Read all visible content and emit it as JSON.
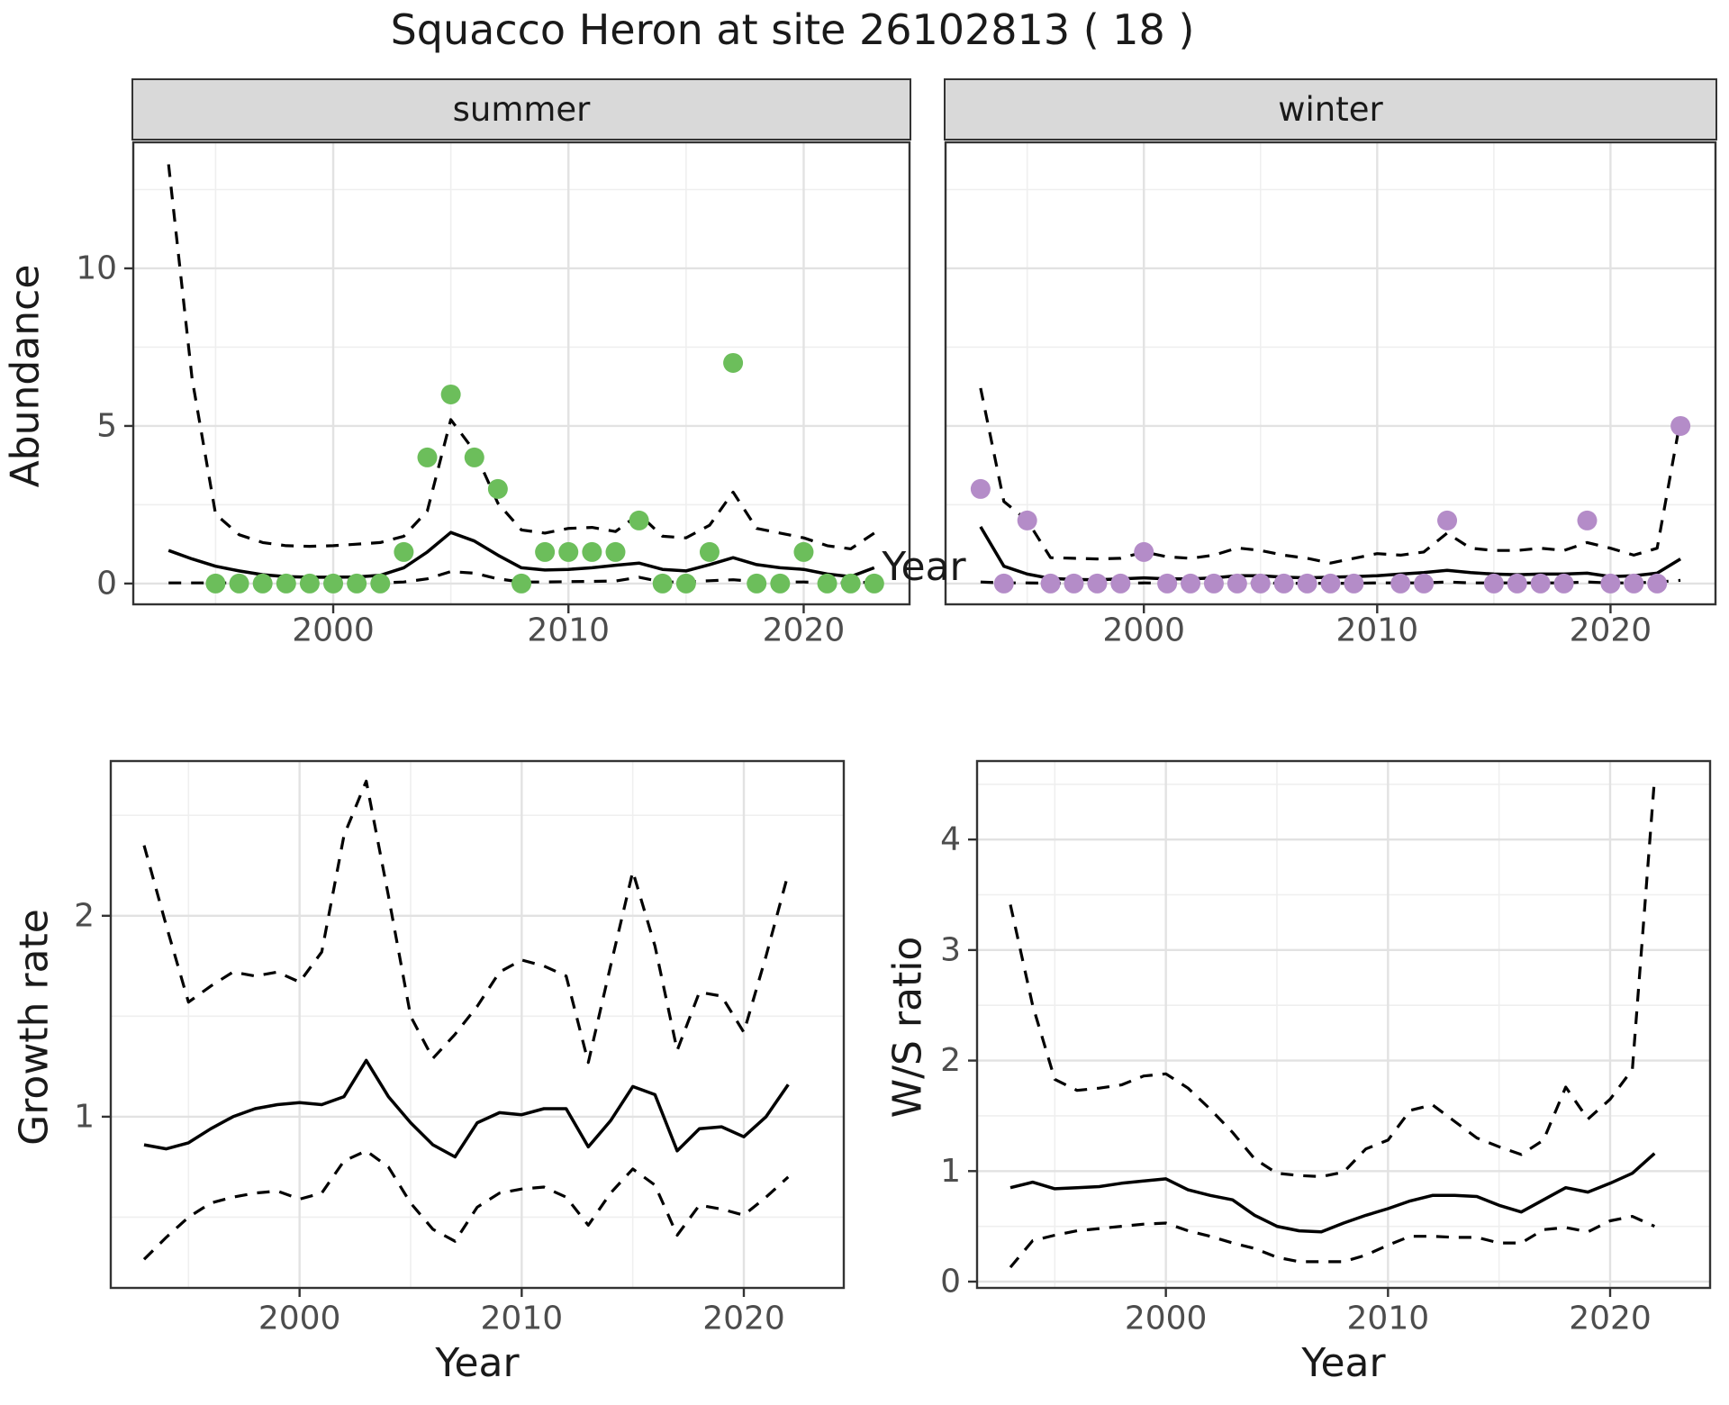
{
  "title": "Squacco Heron at site 26102813 ( 18 )",
  "facets": [
    "summer",
    "winter"
  ],
  "labels": {
    "y_abundance": "Abundance",
    "x_year": "Year",
    "y_growth": "Growth rate",
    "y_ws": "W/S ratio"
  },
  "colors": {
    "summer_dot": "#6cbe5b",
    "winter_dot": "#b48cc8",
    "line": "#000000",
    "grid_major": "#e2e2e2",
    "grid_minor": "#efefef",
    "strip_bg": "#d9d9d9",
    "panel_border": "#333333",
    "tick_label": "#4d4d4d"
  },
  "chart_data": [
    {
      "id": "abundance_summer",
      "type": "scatter",
      "title": "summer",
      "xlabel": "Year",
      "ylabel": "Abundance",
      "x": [
        1993,
        1994,
        1995,
        1996,
        1997,
        1998,
        1999,
        2000,
        2001,
        2002,
        2003,
        2004,
        2005,
        2006,
        2007,
        2008,
        2009,
        2010,
        2011,
        2012,
        2013,
        2014,
        2015,
        2016,
        2017,
        2018,
        2019,
        2020,
        2021,
        2022,
        2023
      ],
      "series": [
        {
          "name": "observed_counts",
          "style": "dots",
          "values": [
            null,
            null,
            0,
            0,
            0,
            0,
            0,
            0,
            0,
            0,
            1,
            4,
            6,
            4,
            3,
            0,
            1,
            1,
            1,
            1,
            2,
            0,
            0,
            1,
            7,
            0,
            0,
            1,
            0,
            0,
            0
          ]
        },
        {
          "name": "modelled_mean",
          "style": "solid",
          "values": [
            1.05,
            0.78,
            0.55,
            0.4,
            0.28,
            0.22,
            0.2,
            0.2,
            0.21,
            0.26,
            0.5,
            1.0,
            1.62,
            1.35,
            0.9,
            0.5,
            0.43,
            0.45,
            0.5,
            0.58,
            0.65,
            0.45,
            0.4,
            0.6,
            0.82,
            0.6,
            0.5,
            0.45,
            0.3,
            0.22,
            0.5
          ]
        },
        {
          "name": "upper_ci",
          "style": "dashed",
          "values": [
            13.3,
            6.5,
            2.2,
            1.55,
            1.3,
            1.2,
            1.18,
            1.2,
            1.25,
            1.3,
            1.5,
            2.3,
            5.2,
            4.2,
            2.55,
            1.7,
            1.6,
            1.75,
            1.78,
            1.65,
            2.2,
            1.5,
            1.45,
            1.85,
            2.9,
            1.75,
            1.6,
            1.45,
            1.2,
            1.1,
            1.6
          ]
        },
        {
          "name": "lower_ci",
          "style": "dashed",
          "values": [
            0.02,
            0.02,
            0.02,
            0.02,
            0.02,
            0.02,
            0.02,
            0.02,
            0.02,
            0.02,
            0.05,
            0.15,
            0.38,
            0.33,
            0.15,
            0.05,
            0.05,
            0.06,
            0.07,
            0.08,
            0.2,
            0.05,
            0.05,
            0.09,
            0.12,
            0.06,
            0.05,
            0.05,
            0.03,
            0.02,
            0.05
          ]
        }
      ],
      "xlim": [
        1991.5,
        2024.5
      ],
      "ylim": [
        -0.66,
        14.0
      ],
      "xticks": [
        2000,
        2010,
        2020
      ],
      "xminor": [
        1995,
        2005,
        2015
      ],
      "yticks": [
        0,
        5,
        10
      ],
      "yminor": [
        2.5,
        7.5,
        12.5
      ],
      "grid": true,
      "legend": "none"
    },
    {
      "id": "abundance_winter",
      "type": "scatter",
      "title": "winter",
      "xlabel": "Year",
      "ylabel": "Abundance",
      "x": [
        1993,
        1994,
        1995,
        1996,
        1997,
        1998,
        1999,
        2000,
        2001,
        2002,
        2003,
        2004,
        2005,
        2006,
        2007,
        2008,
        2009,
        2010,
        2011,
        2012,
        2013,
        2014,
        2015,
        2016,
        2017,
        2018,
        2019,
        2020,
        2021,
        2022,
        2023
      ],
      "series": [
        {
          "name": "observed_counts",
          "style": "dots",
          "values": [
            3,
            0,
            2,
            0,
            0,
            0,
            0,
            1,
            0,
            0,
            0,
            0,
            0,
            0,
            0,
            0,
            0,
            null,
            0,
            0,
            2,
            null,
            0,
            0,
            0,
            0,
            2,
            0,
            0,
            0,
            5
          ]
        },
        {
          "name": "modelled_mean",
          "style": "solid",
          "values": [
            1.8,
            0.55,
            0.3,
            0.16,
            0.13,
            0.12,
            0.15,
            0.18,
            0.15,
            0.15,
            0.18,
            0.25,
            0.25,
            0.2,
            0.18,
            0.2,
            0.22,
            0.25,
            0.3,
            0.35,
            0.42,
            0.35,
            0.3,
            0.28,
            0.3,
            0.3,
            0.33,
            0.22,
            0.25,
            0.33,
            0.78
          ]
        },
        {
          "name": "upper_ci",
          "style": "dashed",
          "values": [
            6.2,
            2.6,
            2.0,
            0.82,
            0.8,
            0.78,
            0.8,
            1.0,
            0.85,
            0.8,
            0.9,
            1.13,
            1.05,
            0.9,
            0.8,
            0.65,
            0.8,
            0.95,
            0.9,
            1.0,
            1.6,
            1.12,
            1.05,
            1.05,
            1.12,
            1.05,
            1.3,
            1.12,
            0.9,
            1.12,
            5.2
          ]
        },
        {
          "name": "lower_ci",
          "style": "dashed",
          "values": [
            0.05,
            0.02,
            0.02,
            0.01,
            0.01,
            0.01,
            0.01,
            0.02,
            0.01,
            0.01,
            0.01,
            0.02,
            0.02,
            0.01,
            0.01,
            0.01,
            0.01,
            0.02,
            0.02,
            0.02,
            0.05,
            0.02,
            0.02,
            0.02,
            0.02,
            0.02,
            0.05,
            0.02,
            0.02,
            0.05,
            0.1
          ]
        }
      ],
      "xlim": [
        1991.5,
        2024.5
      ],
      "ylim": [
        -0.66,
        14.0
      ],
      "xticks": [
        2000,
        2010,
        2020
      ],
      "xminor": [
        1995,
        2005,
        2015
      ],
      "yticks": [],
      "yminor": [
        2.5,
        7.5,
        12.5
      ],
      "ygrid_major_at": [
        0,
        5,
        10
      ],
      "grid": true,
      "legend": "none"
    },
    {
      "id": "growth_rate",
      "type": "line",
      "title": "",
      "xlabel": "Year",
      "ylabel": "Growth rate",
      "x": [
        1993,
        1994,
        1995,
        1996,
        1997,
        1998,
        1999,
        2000,
        2001,
        2002,
        2003,
        2004,
        2005,
        2006,
        2007,
        2008,
        2009,
        2010,
        2011,
        2012,
        2013,
        2014,
        2015,
        2016,
        2017,
        2018,
        2019,
        2020,
        2021,
        2022
      ],
      "series": [
        {
          "name": "growth_rate_mean",
          "style": "solid",
          "values": [
            0.86,
            0.84,
            0.87,
            0.94,
            1.0,
            1.04,
            1.06,
            1.07,
            1.06,
            1.1,
            1.28,
            1.1,
            0.97,
            0.86,
            0.8,
            0.97,
            1.02,
            1.01,
            1.04,
            1.04,
            0.85,
            0.98,
            1.15,
            1.11,
            0.83,
            0.94,
            0.95,
            0.9,
            1.0,
            1.16
          ]
        },
        {
          "name": "upper_ci",
          "style": "dashed",
          "values": [
            2.35,
            1.95,
            1.57,
            1.65,
            1.72,
            1.7,
            1.72,
            1.67,
            1.82,
            2.4,
            2.67,
            2.1,
            1.5,
            1.29,
            1.41,
            1.55,
            1.72,
            1.78,
            1.75,
            1.7,
            1.27,
            1.75,
            2.22,
            1.85,
            1.33,
            1.62,
            1.6,
            1.42,
            1.8,
            2.21
          ]
        },
        {
          "name": "lower_ci",
          "style": "dashed",
          "values": [
            0.29,
            0.4,
            0.5,
            0.57,
            0.6,
            0.62,
            0.63,
            0.59,
            0.62,
            0.78,
            0.83,
            0.75,
            0.57,
            0.44,
            0.38,
            0.55,
            0.62,
            0.64,
            0.65,
            0.6,
            0.46,
            0.62,
            0.74,
            0.66,
            0.41,
            0.56,
            0.54,
            0.51,
            0.6,
            0.7
          ]
        }
      ],
      "xlim": [
        1991.5,
        2024.5
      ],
      "ylim": [
        0.148,
        2.77
      ],
      "xticks": [
        2000,
        2010,
        2020
      ],
      "xminor": [
        1995,
        2005,
        2015
      ],
      "yticks": [
        1,
        2
      ],
      "yminor": [
        0.5,
        1.5,
        2.5
      ],
      "grid": true,
      "legend": "none"
    },
    {
      "id": "ws_ratio",
      "type": "line",
      "title": "",
      "xlabel": "Year",
      "ylabel": "W/S ratio",
      "x": [
        1993,
        1994,
        1995,
        1996,
        1997,
        1998,
        1999,
        2000,
        2001,
        2002,
        2003,
        2004,
        2005,
        2006,
        2007,
        2008,
        2009,
        2010,
        2011,
        2012,
        2013,
        2014,
        2015,
        2016,
        2017,
        2018,
        2019,
        2020,
        2021,
        2022
      ],
      "series": [
        {
          "name": "ws_ratio_mean",
          "style": "solid",
          "values": [
            0.85,
            0.9,
            0.84,
            0.85,
            0.86,
            0.89,
            0.91,
            0.93,
            0.83,
            0.78,
            0.74,
            0.6,
            0.5,
            0.46,
            0.45,
            0.53,
            0.6,
            0.66,
            0.73,
            0.78,
            0.78,
            0.77,
            0.69,
            0.63,
            0.74,
            0.85,
            0.81,
            0.89,
            0.98,
            1.16
          ]
        },
        {
          "name": "upper_ci",
          "style": "dashed",
          "values": [
            3.41,
            2.5,
            1.83,
            1.73,
            1.75,
            1.78,
            1.86,
            1.88,
            1.75,
            1.56,
            1.35,
            1.11,
            0.98,
            0.96,
            0.95,
            0.99,
            1.2,
            1.28,
            1.55,
            1.6,
            1.45,
            1.3,
            1.22,
            1.15,
            1.28,
            1.76,
            1.47,
            1.65,
            1.92,
            4.55
          ]
        },
        {
          "name": "lower_ci",
          "style": "dashed",
          "values": [
            0.13,
            0.37,
            0.42,
            0.46,
            0.48,
            0.5,
            0.52,
            0.53,
            0.46,
            0.41,
            0.35,
            0.3,
            0.22,
            0.18,
            0.18,
            0.18,
            0.24,
            0.33,
            0.41,
            0.41,
            0.4,
            0.4,
            0.35,
            0.35,
            0.47,
            0.49,
            0.45,
            0.55,
            0.59,
            0.5
          ]
        }
      ],
      "xlim": [
        1991.5,
        2024.5
      ],
      "ylim": [
        -0.057,
        4.71
      ],
      "xticks": [
        2000,
        2010,
        2020
      ],
      "xminor": [
        1995,
        2005,
        2015
      ],
      "yticks": [
        0,
        1,
        2,
        3,
        4
      ],
      "yminor": [
        0.5,
        1.5,
        2.5,
        3.5,
        4.5
      ],
      "grid": true,
      "legend": "none"
    }
  ]
}
